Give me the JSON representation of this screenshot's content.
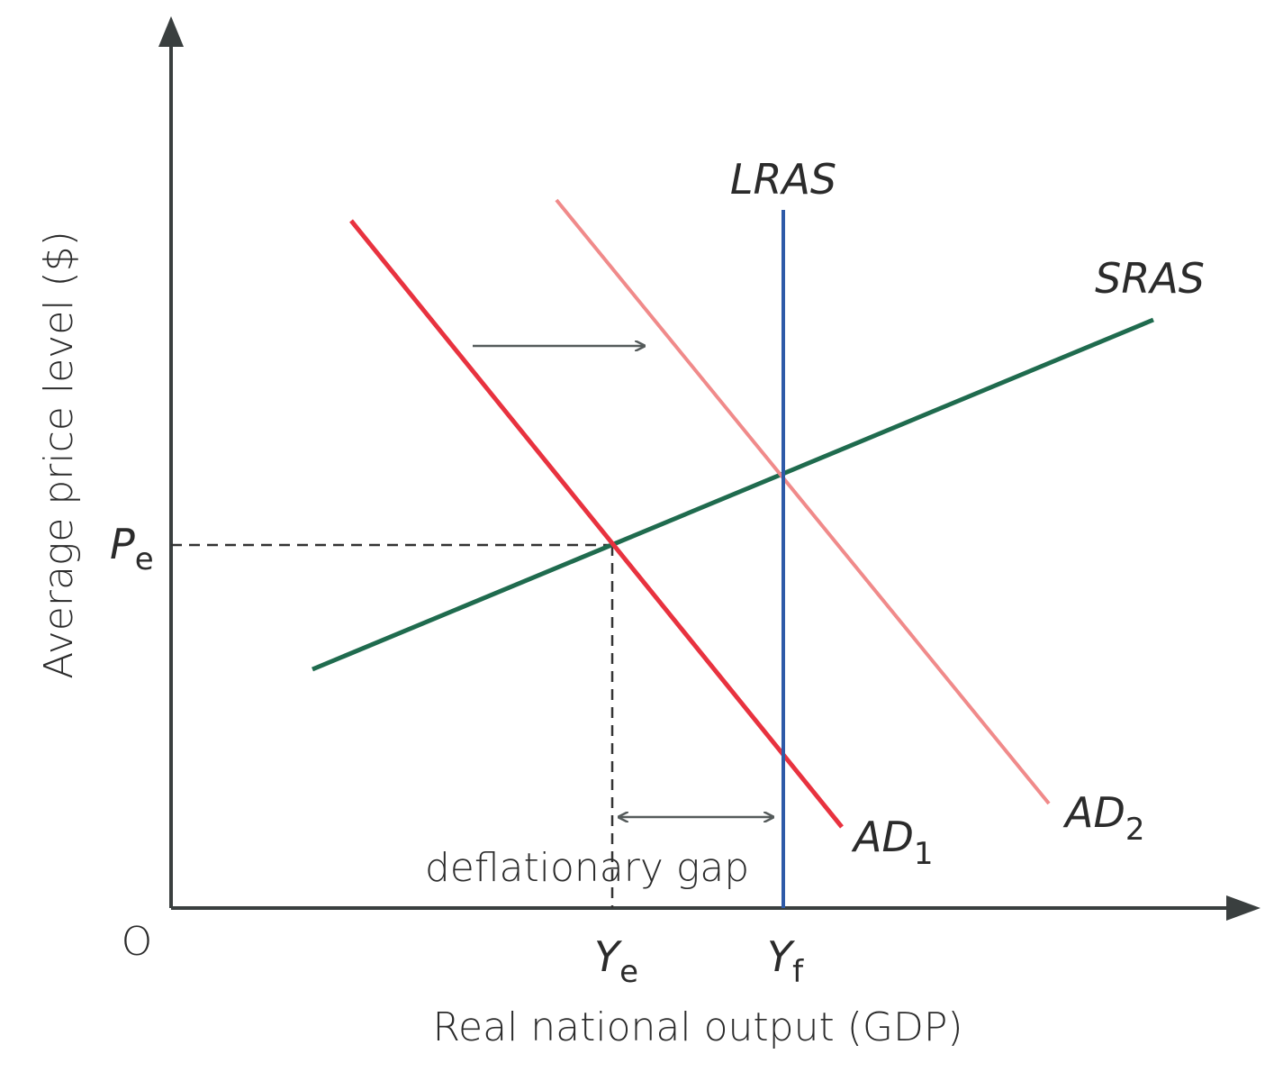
{
  "axes": {
    "origin_label": "O",
    "y_label": "Average price level ($)",
    "x_label": "Real national output (GDP)"
  },
  "ticks": {
    "pe_main": "P",
    "pe_sub": "e",
    "ye_main": "Y",
    "ye_sub": "e",
    "yf_main": "Y",
    "yf_sub": "f"
  },
  "curves": {
    "lras": "LRAS",
    "sras": "SRAS",
    "ad1_main": "AD",
    "ad1_sub": "1",
    "ad2_main": "AD",
    "ad2_sub": "2"
  },
  "annotations": {
    "gap": "deflationary gap"
  },
  "colors": {
    "axis": "#3a3f3f",
    "lras": "#2e5aa8",
    "sras": "#1f6b4e",
    "ad1": "#e8323f",
    "ad2": "#f08a8a",
    "guide": "#333333",
    "arrow": "#555b5b"
  }
}
